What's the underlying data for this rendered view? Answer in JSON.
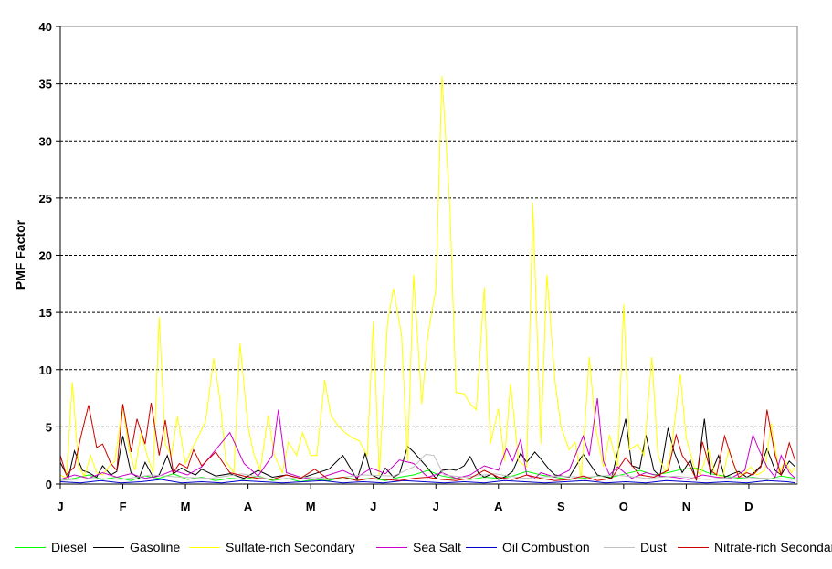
{
  "chart_data": {
    "type": "line",
    "title": "",
    "xlabel": "",
    "ylabel": "PMF Factor",
    "ylim": [
      0,
      40
    ],
    "yticks": [
      0,
      5,
      10,
      15,
      20,
      25,
      30,
      35,
      40
    ],
    "xlim": [
      0,
      365
    ],
    "grid": "horizontal dashed",
    "legend_position": "bottom",
    "month_ticks": [
      {
        "label": "J",
        "day": 0
      },
      {
        "label": "F",
        "day": 31
      },
      {
        "label": "M",
        "day": 62
      },
      {
        "label": "A",
        "day": 93
      },
      {
        "label": "M",
        "day": 124
      },
      {
        "label": "J",
        "day": 155
      },
      {
        "label": "J",
        "day": 186
      },
      {
        "label": "A",
        "day": 217
      },
      {
        "label": "S",
        "day": 248
      },
      {
        "label": "O",
        "day": 279
      },
      {
        "label": "N",
        "day": 310
      },
      {
        "label": "D",
        "day": 341
      }
    ],
    "series": [
      {
        "name": "Diesel",
        "color": "#00ff00",
        "x": [
          0,
          7,
          14,
          21,
          28,
          35,
          42,
          49,
          56,
          63,
          70,
          77,
          84,
          91,
          98,
          105,
          112,
          119,
          126,
          133,
          140,
          147,
          154,
          161,
          168,
          175,
          182,
          189,
          196,
          203,
          210,
          217,
          224,
          231,
          238,
          245,
          252,
          259,
          266,
          273,
          280,
          287,
          294,
          301,
          308,
          315,
          322,
          329,
          336,
          343,
          350,
          357,
          364
        ],
        "y": [
          0.3,
          0.5,
          0.8,
          0.4,
          0.6,
          0.3,
          0.7,
          0.5,
          0.9,
          0.4,
          0.6,
          0.3,
          0.5,
          0.4,
          0.7,
          0.3,
          0.5,
          0.2,
          0.4,
          0.3,
          0.6,
          0.4,
          0.5,
          0.3,
          0.6,
          0.8,
          1.2,
          0.7,
          0.5,
          0.4,
          0.6,
          0.5,
          0.7,
          1.1,
          0.8,
          0.6,
          0.4,
          0.5,
          0.7,
          0.6,
          0.9,
          1.2,
          0.8,
          1.0,
          1.3,
          1.4,
          0.9,
          0.7,
          0.5,
          0.6,
          0.4,
          0.7,
          0.5
        ]
      },
      {
        "name": "Gasoline",
        "color": "#000000",
        "x": [
          0,
          4,
          7,
          11,
          14,
          18,
          21,
          25,
          28,
          31,
          35,
          39,
          42,
          46,
          49,
          53,
          56,
          60,
          63,
          67,
          70,
          77,
          84,
          91,
          98,
          105,
          112,
          119,
          126,
          133,
          140,
          147,
          151,
          154,
          158,
          161,
          165,
          168,
          172,
          175,
          182,
          186,
          189,
          193,
          196,
          200,
          203,
          207,
          210,
          214,
          217,
          221,
          224,
          228,
          231,
          235,
          238,
          242,
          245,
          252,
          259,
          266,
          273,
          280,
          283,
          287,
          290,
          294,
          297,
          301,
          304,
          308,
          312,
          315,
          319,
          322,
          326,
          329,
          333,
          336,
          340,
          343,
          347,
          350,
          354,
          357,
          361,
          364
        ],
        "y": [
          1.9,
          0.5,
          2.9,
          1.2,
          1.0,
          0.6,
          1.6,
          0.8,
          1.1,
          4.2,
          1.0,
          0.5,
          1.9,
          0.6,
          0.8,
          2.5,
          0.9,
          1.4,
          1.1,
          0.8,
          1.3,
          0.7,
          0.9,
          0.5,
          1.2,
          0.6,
          0.8,
          0.5,
          0.9,
          1.3,
          2.5,
          0.4,
          2.7,
          0.8,
          0.5,
          1.4,
          0.6,
          0.9,
          3.3,
          2.8,
          1.4,
          0.5,
          1.2,
          1.3,
          1.2,
          1.6,
          2.4,
          1.0,
          0.6,
          0.9,
          0.4,
          0.7,
          1.1,
          2.7,
          1.9,
          2.8,
          2.2,
          1.3,
          0.8,
          0.6,
          2.6,
          0.8,
          0.5,
          5.7,
          1.6,
          1.4,
          4.3,
          1.2,
          0.7,
          4.9,
          2.8,
          1.0,
          2.1,
          0.3,
          5.7,
          0.8,
          2.5,
          0.6,
          0.9,
          1.1,
          0.6,
          0.9,
          1.6,
          3.1,
          1.2,
          0.8,
          2.0,
          1.5
        ]
      },
      {
        "name": "Sulfate-rich Secondary",
        "color": "#ffff00",
        "x": [
          0,
          3,
          6,
          9,
          12,
          15,
          18,
          21,
          24,
          27,
          31,
          34,
          37,
          40,
          43,
          46,
          49,
          52,
          55,
          58,
          62,
          65,
          68,
          72,
          76,
          79,
          82,
          86,
          89,
          93,
          96,
          99,
          103,
          106,
          110,
          113,
          117,
          120,
          124,
          127,
          131,
          134,
          138,
          141,
          145,
          148,
          152,
          155,
          158,
          162,
          165,
          169,
          172,
          175,
          179,
          182,
          186,
          189,
          193,
          196,
          200,
          203,
          206,
          210,
          213,
          217,
          220,
          223,
          227,
          231,
          234,
          238,
          241,
          245,
          248,
          252,
          255,
          258,
          262,
          265,
          269,
          272,
          276,
          279,
          282,
          286,
          289,
          293,
          296,
          300,
          303,
          307,
          310,
          314,
          317,
          321,
          324,
          328,
          331,
          335,
          338,
          342,
          345,
          349,
          352,
          356,
          359,
          362,
          364
        ],
        "y": [
          0.8,
          0.5,
          8.9,
          1.5,
          0.7,
          2.5,
          1.0,
          0.8,
          1.5,
          2.0,
          6.9,
          3.0,
          1.2,
          4.5,
          2.5,
          1.0,
          14.6,
          3.5,
          2.5,
          5.9,
          1.8,
          3.0,
          4.0,
          5.5,
          11.0,
          7.5,
          2.0,
          1.0,
          12.3,
          5.0,
          2.5,
          1.2,
          6.0,
          2.5,
          1.0,
          3.7,
          2.5,
          4.5,
          2.5,
          2.5,
          9.1,
          6.0,
          5.0,
          4.5,
          4.0,
          3.8,
          2.5,
          14.2,
          0.8,
          14.0,
          17.1,
          13.0,
          2.0,
          18.3,
          7.0,
          13.0,
          17.0,
          35.7,
          24.0,
          8.0,
          7.9,
          7.0,
          6.5,
          17.2,
          3.5,
          6.6,
          2.0,
          8.8,
          2.0,
          1.5,
          24.6,
          3.5,
          18.3,
          9.0,
          5.0,
          3.0,
          3.7,
          0.5,
          11.1,
          5.0,
          1.5,
          4.3,
          1.5,
          15.7,
          3.0,
          3.5,
          2.5,
          11.1,
          2.5,
          1.0,
          3.5,
          9.6,
          4.0,
          1.5,
          0.8,
          3.0,
          1.0,
          0.5,
          3.0,
          1.0,
          0.8,
          1.5,
          0.8,
          1.2,
          5.3,
          1.0,
          2.0,
          1.0,
          1.5
        ]
      },
      {
        "name": "Sea Salt",
        "color": "#cc00cc",
        "x": [
          0,
          7,
          14,
          21,
          28,
          35,
          42,
          49,
          56,
          63,
          70,
          77,
          84,
          91,
          98,
          105,
          108,
          112,
          119,
          126,
          133,
          140,
          147,
          154,
          161,
          168,
          175,
          182,
          189,
          196,
          203,
          210,
          217,
          221,
          224,
          228,
          231,
          235,
          238,
          245,
          252,
          259,
          262,
          266,
          269,
          272,
          276,
          283,
          290,
          297,
          304,
          311,
          318,
          325,
          332,
          339,
          343,
          346,
          350,
          354,
          357,
          361,
          364
        ],
        "y": [
          0.4,
          0.8,
          0.5,
          1.0,
          0.6,
          0.9,
          0.5,
          0.7,
          1.2,
          0.8,
          1.5,
          3.0,
          4.5,
          1.8,
          0.7,
          2.5,
          6.5,
          1.0,
          0.6,
          0.4,
          0.8,
          1.2,
          0.6,
          1.4,
          0.9,
          2.1,
          1.8,
          0.6,
          1.0,
          0.5,
          0.8,
          1.6,
          1.2,
          3.1,
          2.0,
          3.9,
          0.8,
          0.5,
          1.0,
          0.6,
          1.2,
          4.2,
          2.5,
          7.5,
          2.0,
          0.8,
          1.5,
          0.5,
          1.0,
          0.7,
          0.6,
          0.4,
          0.8,
          0.6,
          0.5,
          1.2,
          4.3,
          3.0,
          1.5,
          0.6,
          2.5,
          1.0,
          0.5
        ]
      },
      {
        "name": "Oil Combustion",
        "color": "#0000cc",
        "x": [
          0,
          10,
          20,
          30,
          40,
          50,
          60,
          70,
          80,
          90,
          100,
          110,
          120,
          130,
          140,
          150,
          160,
          170,
          180,
          190,
          200,
          210,
          220,
          230,
          240,
          250,
          260,
          270,
          280,
          290,
          300,
          310,
          320,
          330,
          340,
          350,
          360,
          364
        ],
        "y": [
          0.2,
          0.1,
          0.3,
          0.1,
          0.2,
          0.4,
          0.1,
          0.2,
          0.1,
          0.3,
          0.2,
          0.1,
          0.2,
          0.3,
          0.1,
          0.2,
          0.1,
          0.3,
          0.2,
          0.1,
          0.2,
          0.1,
          0.3,
          0.2,
          0.1,
          0.2,
          0.3,
          0.1,
          0.2,
          0.1,
          0.3,
          0.2,
          0.1,
          0.2,
          0.1,
          0.3,
          0.2,
          0.1
        ]
      },
      {
        "name": "Dust",
        "color": "#c0c0c0",
        "x": [
          0,
          15,
          30,
          45,
          60,
          75,
          90,
          105,
          120,
          135,
          150,
          165,
          175,
          181,
          185,
          190,
          200,
          215,
          230,
          245,
          260,
          275,
          290,
          305,
          320,
          335,
          350,
          364
        ],
        "y": [
          0.3,
          0.5,
          0.4,
          0.8,
          0.6,
          0.5,
          0.9,
          0.4,
          0.6,
          0.5,
          0.8,
          0.7,
          1.5,
          2.6,
          2.5,
          0.8,
          0.6,
          0.9,
          0.5,
          0.7,
          0.6,
          0.8,
          0.5,
          0.7,
          0.4,
          0.6,
          0.5,
          0.4
        ]
      },
      {
        "name": "Nitrate-rich Secondary",
        "color": "#cc0000",
        "x": [
          0,
          3,
          7,
          10,
          14,
          18,
          21,
          25,
          28,
          31,
          35,
          38,
          42,
          45,
          49,
          52,
          56,
          59,
          63,
          66,
          70,
          77,
          84,
          91,
          98,
          105,
          112,
          119,
          126,
          133,
          140,
          147,
          154,
          161,
          168,
          175,
          182,
          189,
          196,
          203,
          210,
          217,
          224,
          231,
          238,
          245,
          252,
          259,
          266,
          273,
          280,
          287,
          294,
          301,
          305,
          308,
          312,
          315,
          318,
          322,
          325,
          329,
          333,
          336,
          340,
          343,
          347,
          350,
          354,
          357,
          361,
          364
        ],
        "y": [
          2.5,
          0.8,
          1.5,
          4.0,
          6.9,
          3.2,
          3.5,
          1.8,
          1.2,
          7.0,
          2.8,
          5.7,
          3.5,
          7.1,
          2.5,
          5.6,
          1.0,
          1.8,
          1.4,
          3.0,
          1.6,
          2.8,
          1.0,
          0.7,
          0.5,
          0.4,
          0.8,
          0.5,
          1.3,
          0.4,
          0.6,
          0.3,
          0.5,
          0.4,
          0.3,
          0.5,
          0.6,
          0.4,
          0.3,
          0.5,
          1.2,
          0.6,
          0.4,
          0.8,
          0.5,
          0.3,
          0.4,
          0.7,
          0.3,
          0.5,
          2.3,
          0.8,
          0.6,
          1.2,
          4.3,
          2.5,
          1.5,
          0.4,
          3.7,
          1.2,
          0.8,
          4.2,
          2.0,
          0.6,
          1.0,
          0.8,
          1.5,
          6.5,
          2.5,
          0.8,
          3.6,
          2.0
        ]
      }
    ]
  }
}
